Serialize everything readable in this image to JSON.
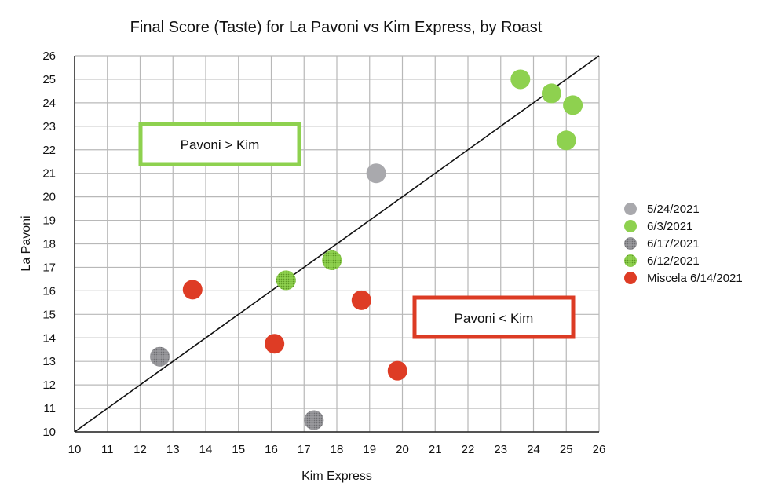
{
  "chart_data": {
    "type": "scatter",
    "title": "Final Score (Taste) for La Pavoni vs Kim Express, by Roast",
    "xlabel": "Kim Express",
    "ylabel": "La Pavoni",
    "xlim": [
      10,
      26
    ],
    "ylim": [
      10,
      26
    ],
    "xticks": [
      10,
      11,
      12,
      13,
      14,
      15,
      16,
      17,
      18,
      19,
      20,
      21,
      22,
      23,
      24,
      25,
      26
    ],
    "yticks": [
      10,
      11,
      12,
      13,
      14,
      15,
      16,
      17,
      18,
      19,
      20,
      21,
      22,
      23,
      24,
      25,
      26
    ],
    "grid": true,
    "legend_position": "right",
    "reference_line": {
      "from": [
        10,
        10
      ],
      "to": [
        26,
        26
      ]
    },
    "series": [
      {
        "name": "5/24/2021",
        "color": "#a9a9ad",
        "style": "solid",
        "points": [
          {
            "x": 19.2,
            "y": 21.0
          }
        ]
      },
      {
        "name": "6/3/2021",
        "color": "#8ed14f",
        "style": "solid",
        "points": [
          {
            "x": 23.6,
            "y": 25.0
          },
          {
            "x": 24.55,
            "y": 24.4
          },
          {
            "x": 25.2,
            "y": 23.9
          },
          {
            "x": 25.0,
            "y": 22.4
          }
        ]
      },
      {
        "name": "6/17/2021",
        "color": "#8a8a8e",
        "style": "dotted",
        "points": [
          {
            "x": 12.6,
            "y": 13.2
          },
          {
            "x": 17.3,
            "y": 10.5
          }
        ]
      },
      {
        "name": "6/12/2021",
        "color": "#84c840",
        "style": "dotted",
        "points": [
          {
            "x": 16.45,
            "y": 16.45
          },
          {
            "x": 17.85,
            "y": 17.3
          }
        ]
      },
      {
        "name": "Miscela 6/14/2021",
        "color": "#de3c25",
        "style": "solid",
        "points": [
          {
            "x": 13.6,
            "y": 16.05
          },
          {
            "x": 16.1,
            "y": 13.75
          },
          {
            "x": 18.75,
            "y": 15.6
          },
          {
            "x": 19.85,
            "y": 12.6
          }
        ]
      }
    ],
    "annotations": [
      {
        "text": "Pavoni > Kim",
        "color": "#8ed14f"
      },
      {
        "text": "Pavoni < Kim",
        "color": "#dc3b24"
      }
    ]
  }
}
